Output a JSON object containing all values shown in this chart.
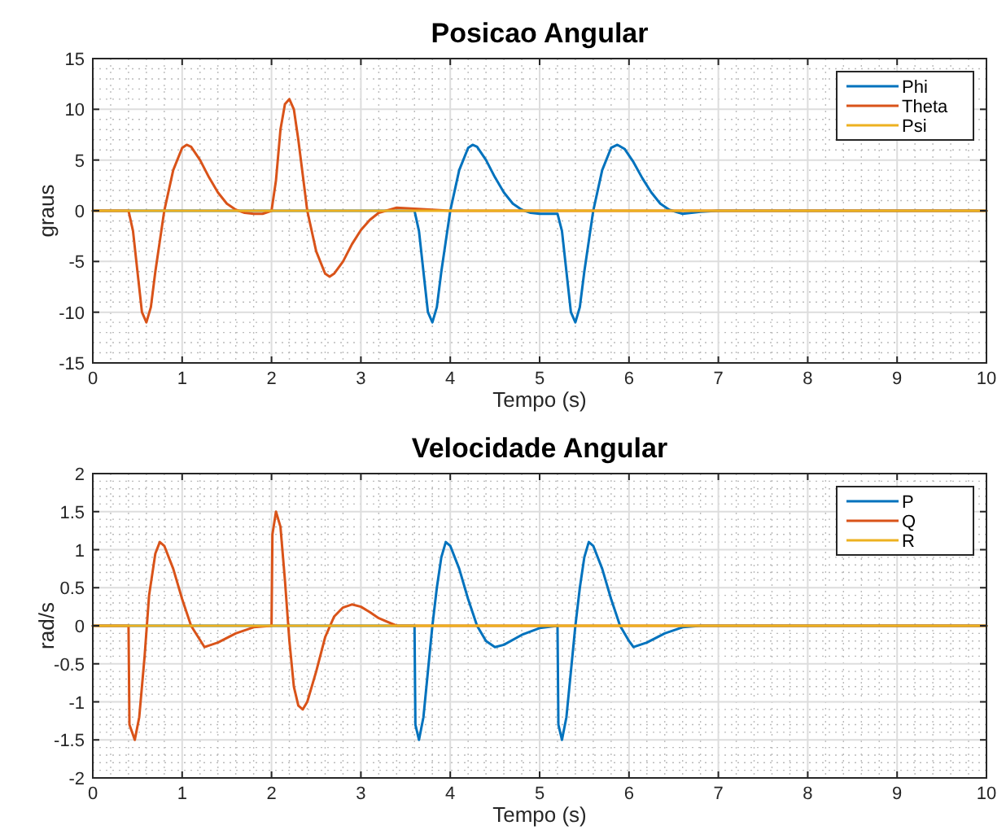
{
  "chart_data": [
    {
      "type": "line",
      "title": "Posicao Angular",
      "xlabel": "Tempo (s)",
      "ylabel": "graus",
      "xlim": [
        0,
        10
      ],
      "xticks": [
        0,
        1,
        2,
        3,
        4,
        5,
        6,
        7,
        8,
        9,
        10
      ],
      "ylim": [
        -15,
        15
      ],
      "yticks": [
        -15,
        -10,
        -5,
        0,
        5,
        10,
        15
      ],
      "grid": true,
      "legend": "top right",
      "series": [
        {
          "name": "Phi",
          "color": "#0072bd",
          "x": [
            0,
            3.6,
            3.65,
            3.7,
            3.75,
            3.8,
            3.85,
            3.9,
            3.95,
            4.0,
            4.1,
            4.2,
            4.25,
            4.3,
            4.4,
            4.5,
            4.6,
            4.7,
            4.8,
            4.9,
            5.0,
            5.1,
            5.2,
            5.25,
            5.3,
            5.35,
            5.4,
            5.45,
            5.5,
            5.55,
            5.6,
            5.7,
            5.8,
            5.87,
            5.95,
            6.05,
            6.15,
            6.25,
            6.35,
            6.45,
            6.6,
            6.8,
            7,
            10
          ],
          "values": [
            0,
            0,
            -2,
            -6,
            -10,
            -11,
            -9.5,
            -6,
            -3,
            0,
            4,
            6.2,
            6.5,
            6.3,
            5,
            3.3,
            1.8,
            0.7,
            0.1,
            -0.2,
            -0.3,
            -0.3,
            -0.3,
            -2,
            -6,
            -10,
            -11,
            -9.5,
            -6,
            -3,
            0,
            4,
            6.2,
            6.5,
            6.1,
            4.8,
            3.2,
            1.8,
            0.7,
            0.1,
            -0.3,
            -0.1,
            0,
            0
          ]
        },
        {
          "name": "Theta",
          "color": "#d95319",
          "x": [
            0,
            0.4,
            0.45,
            0.5,
            0.55,
            0.6,
            0.65,
            0.7,
            0.75,
            0.8,
            0.9,
            1.0,
            1.05,
            1.1,
            1.2,
            1.3,
            1.4,
            1.5,
            1.6,
            1.7,
            1.8,
            1.9,
            2.0,
            2.05,
            2.1,
            2.15,
            2.2,
            2.25,
            2.3,
            2.35,
            2.4,
            2.5,
            2.6,
            2.65,
            2.7,
            2.8,
            2.9,
            3.0,
            3.1,
            3.2,
            3.4,
            3.6,
            4,
            10
          ],
          "values": [
            0,
            0,
            -2,
            -6,
            -10,
            -11,
            -9.5,
            -6,
            -3,
            0,
            4,
            6.2,
            6.5,
            6.3,
            5,
            3.3,
            1.8,
            0.7,
            0.1,
            -0.2,
            -0.3,
            -0.3,
            0,
            3,
            8,
            10.5,
            11,
            10,
            7,
            3.5,
            0,
            -4,
            -6.2,
            -6.5,
            -6.2,
            -5,
            -3.3,
            -1.9,
            -0.9,
            -0.2,
            0.3,
            0.2,
            0,
            0
          ]
        },
        {
          "name": "Psi",
          "color": "#edb120",
          "x": [
            0,
            10
          ],
          "values": [
            0,
            0
          ]
        }
      ]
    },
    {
      "type": "line",
      "title": "Velocidade Angular",
      "xlabel": "Tempo (s)",
      "ylabel": "rad/s",
      "xlim": [
        0,
        10
      ],
      "xticks": [
        0,
        1,
        2,
        3,
        4,
        5,
        6,
        7,
        8,
        9,
        10
      ],
      "ylim": [
        -2,
        2
      ],
      "yticks": [
        -2,
        -1.5,
        -1,
        -0.5,
        0,
        0.5,
        1,
        1.5,
        2
      ],
      "grid": true,
      "legend": "top right",
      "series": [
        {
          "name": "P",
          "color": "#0072bd",
          "x": [
            0,
            3.6,
            3.61,
            3.65,
            3.7,
            3.75,
            3.8,
            3.85,
            3.9,
            3.95,
            4.0,
            4.1,
            4.2,
            4.3,
            4.4,
            4.5,
            4.6,
            4.8,
            5.0,
            5.2,
            5.21,
            5.25,
            5.3,
            5.35,
            5.4,
            5.45,
            5.5,
            5.55,
            5.6,
            5.7,
            5.8,
            5.9,
            6.0,
            6.05,
            6.2,
            6.4,
            6.6,
            6.8,
            10
          ],
          "values": [
            0,
            0,
            -1.3,
            -1.5,
            -1.2,
            -0.6,
            0,
            0.5,
            0.9,
            1.1,
            1.05,
            0.75,
            0.35,
            0,
            -0.2,
            -0.28,
            -0.25,
            -0.12,
            -0.03,
            0,
            -1.3,
            -1.5,
            -1.2,
            -0.6,
            0,
            0.5,
            0.9,
            1.1,
            1.05,
            0.75,
            0.35,
            0,
            -0.2,
            -0.28,
            -0.22,
            -0.1,
            -0.02,
            0,
            0
          ]
        },
        {
          "name": "Q",
          "color": "#d95319",
          "x": [
            0,
            0.4,
            0.41,
            0.47,
            0.52,
            0.58,
            0.63,
            0.7,
            0.75,
            0.8,
            0.9,
            1.0,
            1.1,
            1.25,
            1.4,
            1.6,
            1.8,
            2.0,
            2.01,
            2.05,
            2.1,
            2.15,
            2.2,
            2.25,
            2.3,
            2.35,
            2.4,
            2.5,
            2.6,
            2.7,
            2.8,
            2.9,
            3.0,
            3.1,
            3.2,
            3.4,
            3.6,
            10
          ],
          "values": [
            0,
            0,
            -1.3,
            -1.5,
            -1.2,
            -0.4,
            0.4,
            0.95,
            1.1,
            1.05,
            0.75,
            0.35,
            0,
            -0.28,
            -0.22,
            -0.1,
            -0.02,
            0,
            1.2,
            1.5,
            1.3,
            0.6,
            -0.2,
            -0.8,
            -1.05,
            -1.1,
            -1,
            -0.6,
            -0.15,
            0.12,
            0.24,
            0.28,
            0.25,
            0.18,
            0.1,
            0,
            0,
            0
          ]
        },
        {
          "name": "R",
          "color": "#edb120",
          "x": [
            0,
            10
          ],
          "values": [
            0,
            0
          ]
        }
      ]
    }
  ]
}
